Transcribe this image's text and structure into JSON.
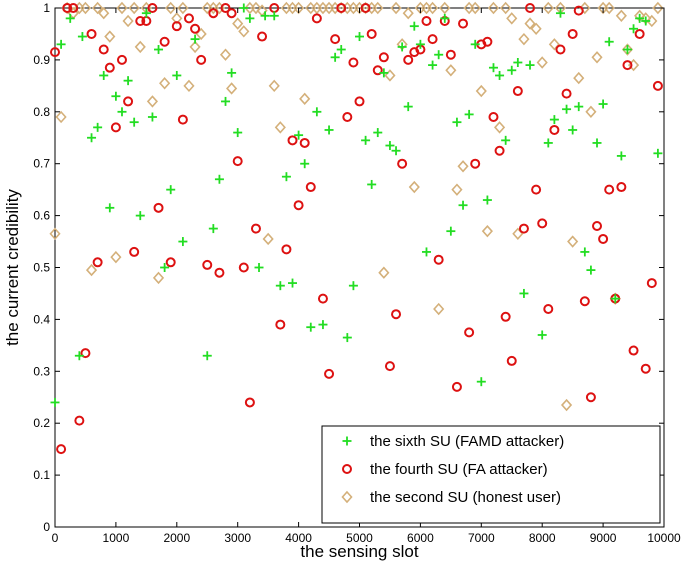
{
  "chart_data": {
    "type": "scatter",
    "title": "",
    "xlabel": "the sensing slot",
    "ylabel": "the current credibility",
    "xlim": [
      0,
      10000
    ],
    "ylim": [
      0,
      1
    ],
    "xticks": [
      0,
      1000,
      2000,
      3000,
      4000,
      5000,
      6000,
      7000,
      8000,
      9000,
      10000
    ],
    "yticks": [
      0,
      0.1,
      0.2,
      0.3,
      0.4,
      0.5,
      0.6,
      0.7,
      0.8,
      0.9,
      1
    ],
    "xtick_labels": [
      "0",
      "1000",
      "2000",
      "3000",
      "4000",
      "5000",
      "6000",
      "7000",
      "8000",
      "9000",
      "10000"
    ],
    "ytick_labels": [
      "0",
      "0.1",
      "0.2",
      "0.3",
      "0.4",
      "0.5",
      "0.6",
      "0.7",
      "0.8",
      "0.9",
      "1"
    ],
    "grid": false,
    "legend_position": "bottom-right",
    "series": [
      {
        "name": "the sixth SU (FAMD attacker)",
        "marker": "plus",
        "color": "#22dd22",
        "points": [
          [
            0,
            0.24
          ],
          [
            100,
            0.93
          ],
          [
            250,
            0.98
          ],
          [
            400,
            0.33
          ],
          [
            450,
            0.945
          ],
          [
            600,
            0.75
          ],
          [
            700,
            0.77
          ],
          [
            800,
            0.87
          ],
          [
            900,
            0.615
          ],
          [
            1000,
            0.83
          ],
          [
            1100,
            0.8
          ],
          [
            1200,
            0.86
          ],
          [
            1300,
            0.78
          ],
          [
            1400,
            0.6
          ],
          [
            1500,
            0.99
          ],
          [
            1600,
            0.79
          ],
          [
            1700,
            0.92
          ],
          [
            1800,
            0.5
          ],
          [
            1900,
            0.65
          ],
          [
            2000,
            0.87
          ],
          [
            2100,
            0.55
          ],
          [
            2300,
            0.94
          ],
          [
            2500,
            0.33
          ],
          [
            2600,
            0.575
          ],
          [
            2700,
            0.67
          ],
          [
            2800,
            0.82
          ],
          [
            2900,
            0.875
          ],
          [
            3000,
            0.76
          ],
          [
            3100,
            1.0
          ],
          [
            3200,
            0.98
          ],
          [
            3350,
            0.5
          ],
          [
            3450,
            0.985
          ],
          [
            3600,
            0.985
          ],
          [
            3700,
            0.465
          ],
          [
            3800,
            0.675
          ],
          [
            3900,
            0.47
          ],
          [
            4000,
            0.755
          ],
          [
            4100,
            0.7
          ],
          [
            4200,
            0.385
          ],
          [
            4300,
            0.8
          ],
          [
            4400,
            0.39
          ],
          [
            4500,
            0.765
          ],
          [
            4600,
            0.905
          ],
          [
            4700,
            0.92
          ],
          [
            4800,
            0.365
          ],
          [
            4900,
            0.465
          ],
          [
            5000,
            0.945
          ],
          [
            5100,
            0.745
          ],
          [
            5200,
            0.66
          ],
          [
            5300,
            0.76
          ],
          [
            5400,
            0.875
          ],
          [
            5500,
            0.735
          ],
          [
            5600,
            0.725
          ],
          [
            5700,
            0.925
          ],
          [
            5800,
            0.81
          ],
          [
            5900,
            0.965
          ],
          [
            6000,
            0.93
          ],
          [
            6100,
            0.53
          ],
          [
            6200,
            0.89
          ],
          [
            6300,
            0.91
          ],
          [
            6400,
            0.98
          ],
          [
            6500,
            0.57
          ],
          [
            6600,
            0.78
          ],
          [
            6700,
            0.62
          ],
          [
            6800,
            0.795
          ],
          [
            6900,
            0.93
          ],
          [
            7000,
            0.28
          ],
          [
            7100,
            0.63
          ],
          [
            7200,
            0.885
          ],
          [
            7300,
            0.87
          ],
          [
            7400,
            0.745
          ],
          [
            7500,
            0.88
          ],
          [
            7600,
            0.895
          ],
          [
            7700,
            0.45
          ],
          [
            7800,
            0.89
          ],
          [
            7900,
            0.18
          ],
          [
            8000,
            0.37
          ],
          [
            8100,
            0.74
          ],
          [
            8200,
            0.785
          ],
          [
            8300,
            0.99
          ],
          [
            8400,
            0.805
          ],
          [
            8500,
            0.765
          ],
          [
            8600,
            0.81
          ],
          [
            8700,
            0.53
          ],
          [
            8800,
            0.495
          ],
          [
            8900,
            0.74
          ],
          [
            9000,
            0.815
          ],
          [
            9100,
            0.935
          ],
          [
            9200,
            0.44
          ],
          [
            9300,
            0.715
          ],
          [
            9400,
            0.92
          ],
          [
            9500,
            0.96
          ],
          [
            9600,
            0.98
          ],
          [
            9700,
            0.975
          ],
          [
            9900,
            0.72
          ]
        ]
      },
      {
        "name": "the fourth SU (FA attacker)",
        "marker": "circle",
        "color": "#dd1111",
        "points": [
          [
            0,
            0.915
          ],
          [
            100,
            0.15
          ],
          [
            200,
            1.0
          ],
          [
            300,
            1.0
          ],
          [
            400,
            0.205
          ],
          [
            500,
            0.335
          ],
          [
            600,
            0.95
          ],
          [
            700,
            0.51
          ],
          [
            800,
            0.92
          ],
          [
            900,
            0.885
          ],
          [
            1000,
            0.77
          ],
          [
            1100,
            0.9
          ],
          [
            1200,
            0.82
          ],
          [
            1300,
            0.53
          ],
          [
            1400,
            0.975
          ],
          [
            1500,
            0.975
          ],
          [
            1600,
            1.0
          ],
          [
            1700,
            0.615
          ],
          [
            1800,
            0.935
          ],
          [
            1900,
            0.51
          ],
          [
            2000,
            0.965
          ],
          [
            2100,
            0.785
          ],
          [
            2200,
            0.98
          ],
          [
            2300,
            0.96
          ],
          [
            2400,
            0.9
          ],
          [
            2500,
            0.505
          ],
          [
            2600,
            0.99
          ],
          [
            2700,
            0.49
          ],
          [
            2800,
            1.0
          ],
          [
            2900,
            0.99
          ],
          [
            3000,
            0.705
          ],
          [
            3100,
            0.5
          ],
          [
            3200,
            0.24
          ],
          [
            3300,
            0.575
          ],
          [
            3400,
            0.945
          ],
          [
            3600,
            1.0
          ],
          [
            3700,
            0.39
          ],
          [
            3800,
            0.535
          ],
          [
            3900,
            0.745
          ],
          [
            4000,
            0.62
          ],
          [
            4100,
            0.74
          ],
          [
            4200,
            0.655
          ],
          [
            4300,
            0.98
          ],
          [
            4400,
            0.44
          ],
          [
            4500,
            0.295
          ],
          [
            4600,
            0.94
          ],
          [
            4700,
            1.0
          ],
          [
            4800,
            0.79
          ],
          [
            4900,
            0.895
          ],
          [
            5000,
            0.82
          ],
          [
            5100,
            1.0
          ],
          [
            5200,
            0.95
          ],
          [
            5300,
            0.88
          ],
          [
            5400,
            0.905
          ],
          [
            5500,
            0.31
          ],
          [
            5600,
            0.41
          ],
          [
            5700,
            0.7
          ],
          [
            5800,
            0.9
          ],
          [
            5900,
            0.915
          ],
          [
            6000,
            0.92
          ],
          [
            6100,
            0.975
          ],
          [
            6200,
            0.94
          ],
          [
            6300,
            0.515
          ],
          [
            6400,
            0.975
          ],
          [
            6500,
            0.91
          ],
          [
            6600,
            0.27
          ],
          [
            6700,
            0.97
          ],
          [
            6800,
            0.375
          ],
          [
            6900,
            0.7
          ],
          [
            7000,
            0.93
          ],
          [
            7100,
            0.935
          ],
          [
            7200,
            0.79
          ],
          [
            7300,
            0.725
          ],
          [
            7400,
            0.405
          ],
          [
            7500,
            0.32
          ],
          [
            7600,
            0.84
          ],
          [
            7700,
            0.575
          ],
          [
            7800,
            1.0
          ],
          [
            7900,
            0.65
          ],
          [
            8000,
            0.585
          ],
          [
            8100,
            0.42
          ],
          [
            8200,
            0.765
          ],
          [
            8300,
            0.92
          ],
          [
            8400,
            0.835
          ],
          [
            8500,
            0.95
          ],
          [
            8600,
            0.995
          ],
          [
            8700,
            0.435
          ],
          [
            8800,
            0.25
          ],
          [
            8900,
            0.58
          ],
          [
            9000,
            0.555
          ],
          [
            9100,
            0.65
          ],
          [
            9200,
            0.44
          ],
          [
            9300,
            0.655
          ],
          [
            9400,
            0.89
          ],
          [
            9500,
            0.34
          ],
          [
            9600,
            0.95
          ],
          [
            9700,
            0.305
          ],
          [
            9800,
            0.47
          ],
          [
            9900,
            0.85
          ]
        ]
      },
      {
        "name": "the second SU (honest user)",
        "marker": "diamond",
        "color": "#d4b07a",
        "points": [
          [
            0,
            0.565
          ],
          [
            100,
            0.79
          ],
          [
            200,
            1.0
          ],
          [
            300,
            0.99
          ],
          [
            400,
            1.0
          ],
          [
            500,
            1.0
          ],
          [
            600,
            0.495
          ],
          [
            700,
            1.0
          ],
          [
            800,
            0.99
          ],
          [
            900,
            0.945
          ],
          [
            1000,
            0.52
          ],
          [
            1100,
            1.0
          ],
          [
            1200,
            0.975
          ],
          [
            1300,
            1.0
          ],
          [
            1400,
            0.925
          ],
          [
            1500,
            1.0
          ],
          [
            1600,
            0.82
          ],
          [
            1700,
            0.48
          ],
          [
            1800,
            0.855
          ],
          [
            1900,
            1.0
          ],
          [
            2000,
            0.98
          ],
          [
            2100,
            1.0
          ],
          [
            2200,
            0.85
          ],
          [
            2300,
            0.925
          ],
          [
            2400,
            0.95
          ],
          [
            2500,
            1.0
          ],
          [
            2600,
            1.0
          ],
          [
            2700,
            1.0
          ],
          [
            2800,
            0.91
          ],
          [
            2900,
            0.845
          ],
          [
            3000,
            0.97
          ],
          [
            3100,
            0.955
          ],
          [
            3200,
            1.0
          ],
          [
            3300,
            1.0
          ],
          [
            3400,
            0.995
          ],
          [
            3500,
            0.555
          ],
          [
            3600,
            0.85
          ],
          [
            3700,
            0.77
          ],
          [
            3800,
            1.0
          ],
          [
            3900,
            1.0
          ],
          [
            4000,
            1.0
          ],
          [
            4100,
            0.825
          ],
          [
            4200,
            1.0
          ],
          [
            4300,
            1.0
          ],
          [
            4400,
            1.0
          ],
          [
            4500,
            1.0
          ],
          [
            4600,
            1.0
          ],
          [
            4700,
            1.0
          ],
          [
            4800,
            1.0
          ],
          [
            4900,
            1.0
          ],
          [
            5000,
            1.0
          ],
          [
            5100,
            1.0
          ],
          [
            5200,
            1.0
          ],
          [
            5300,
            1.0
          ],
          [
            5400,
            0.49
          ],
          [
            5500,
            0.87
          ],
          [
            5600,
            1.0
          ],
          [
            5700,
            0.93
          ],
          [
            5800,
            0.99
          ],
          [
            5900,
            0.655
          ],
          [
            6000,
            1.0
          ],
          [
            6100,
            1.0
          ],
          [
            6200,
            1.0
          ],
          [
            6300,
            0.42
          ],
          [
            6400,
            1.0
          ],
          [
            6500,
            0.88
          ],
          [
            6600,
            0.65
          ],
          [
            6700,
            0.695
          ],
          [
            6800,
            1.0
          ],
          [
            6900,
            1.0
          ],
          [
            7000,
            0.84
          ],
          [
            7100,
            0.57
          ],
          [
            7200,
            1.0
          ],
          [
            7300,
            0.77
          ],
          [
            7400,
            1.0
          ],
          [
            7500,
            0.98
          ],
          [
            7600,
            0.565
          ],
          [
            7700,
            0.94
          ],
          [
            7800,
            0.97
          ],
          [
            7900,
            0.96
          ],
          [
            8000,
            0.895
          ],
          [
            8100,
            1.0
          ],
          [
            8200,
            0.93
          ],
          [
            8300,
            1.0
          ],
          [
            8400,
            0.235
          ],
          [
            8500,
            0.55
          ],
          [
            8600,
            0.865
          ],
          [
            8700,
            1.0
          ],
          [
            8800,
            0.8
          ],
          [
            8900,
            0.905
          ],
          [
            9000,
            1.0
          ],
          [
            9100,
            1.0
          ],
          [
            9200,
            0.44
          ],
          [
            9300,
            0.985
          ],
          [
            9400,
            0.92
          ],
          [
            9500,
            0.89
          ],
          [
            9600,
            0.985
          ],
          [
            9700,
            0.98
          ],
          [
            9800,
            0.975
          ],
          [
            9900,
            1.0
          ]
        ]
      }
    ]
  }
}
